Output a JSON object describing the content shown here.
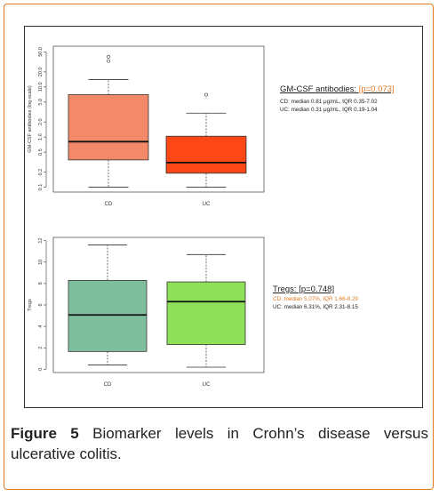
{
  "chart_data": [
    {
      "type": "box",
      "ylabel": "GM-CSF antibodies (log-scale)",
      "yscale": "log",
      "ylim": [
        0.08,
        65
      ],
      "yticks": [
        "0.1",
        "0.2",
        "0.5",
        "1.0",
        "2.0",
        "5.0",
        "10.0",
        "20.0",
        "50.0"
      ],
      "yticks_values": [
        0.1,
        0.2,
        0.5,
        1,
        2,
        5,
        10,
        20,
        50
      ],
      "categories": [
        "CD",
        "UC"
      ],
      "colors": [
        "#f4896a",
        "#fe4717"
      ],
      "boxes": [
        {
          "name": "CD",
          "whisker_low": 0.1,
          "q1": 0.35,
          "median": 0.81,
          "q3": 7.02,
          "whisker_high": 14,
          "outliers": [
            33,
            40
          ]
        },
        {
          "name": "UC",
          "whisker_low": 0.1,
          "q1": 0.19,
          "median": 0.31,
          "q3": 1.04,
          "whisker_high": 3.0,
          "outliers": [
            7
          ]
        }
      ],
      "annotation": {
        "title": "GM-CSF antibodies: ",
        "p_value": "[p=0.073]",
        "lines": [
          "CD: median 0.81 μg/mL, IQR 0.35-7.02",
          "UC: median 0.31 μg/mL, IQR 0.19-1.04"
        ]
      }
    },
    {
      "type": "box",
      "ylabel": "Tregs",
      "ylim": [
        -0.3,
        12.3
      ],
      "yticks": [
        "0",
        "2",
        "4",
        "6",
        "8",
        "10",
        "12"
      ],
      "yticks_values": [
        0,
        2,
        4,
        6,
        8,
        10,
        12
      ],
      "categories": [
        "CD",
        "UC"
      ],
      "colors": [
        "#80bf9e",
        "#8ee059"
      ],
      "boxes": [
        {
          "name": "CD",
          "whisker_low": 0.4,
          "q1": 1.66,
          "median": 5.07,
          "q3": 8.29,
          "whisker_high": 11.6,
          "outliers": []
        },
        {
          "name": "UC",
          "whisker_low": 0.2,
          "q1": 2.31,
          "median": 6.31,
          "q3": 8.15,
          "whisker_high": 10.7,
          "outliers": []
        }
      ],
      "annotation": {
        "title": "Tregs: [p=0.748]",
        "p_value": "",
        "lines": [
          "CD: median 5.07%, IQR 1.66-8.29",
          "UC: median 6.31%, IQR 2.31-8.15"
        ]
      }
    }
  ],
  "caption": {
    "label": "Figure 5",
    "text": "Biomarker levels in Crohn’s disease versus ulcerative colitis."
  }
}
